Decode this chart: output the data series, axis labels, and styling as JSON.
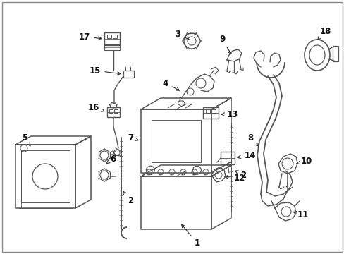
{
  "background_color": "#ffffff",
  "border_color": "#888888",
  "fig_width": 4.89,
  "fig_height": 3.6,
  "dpi": 100,
  "line_color": "#555555",
  "label_color": "#111111",
  "label_fontsize": 8.5,
  "lw_main": 1.1,
  "lw_thin": 0.7,
  "lw_thick": 1.4
}
